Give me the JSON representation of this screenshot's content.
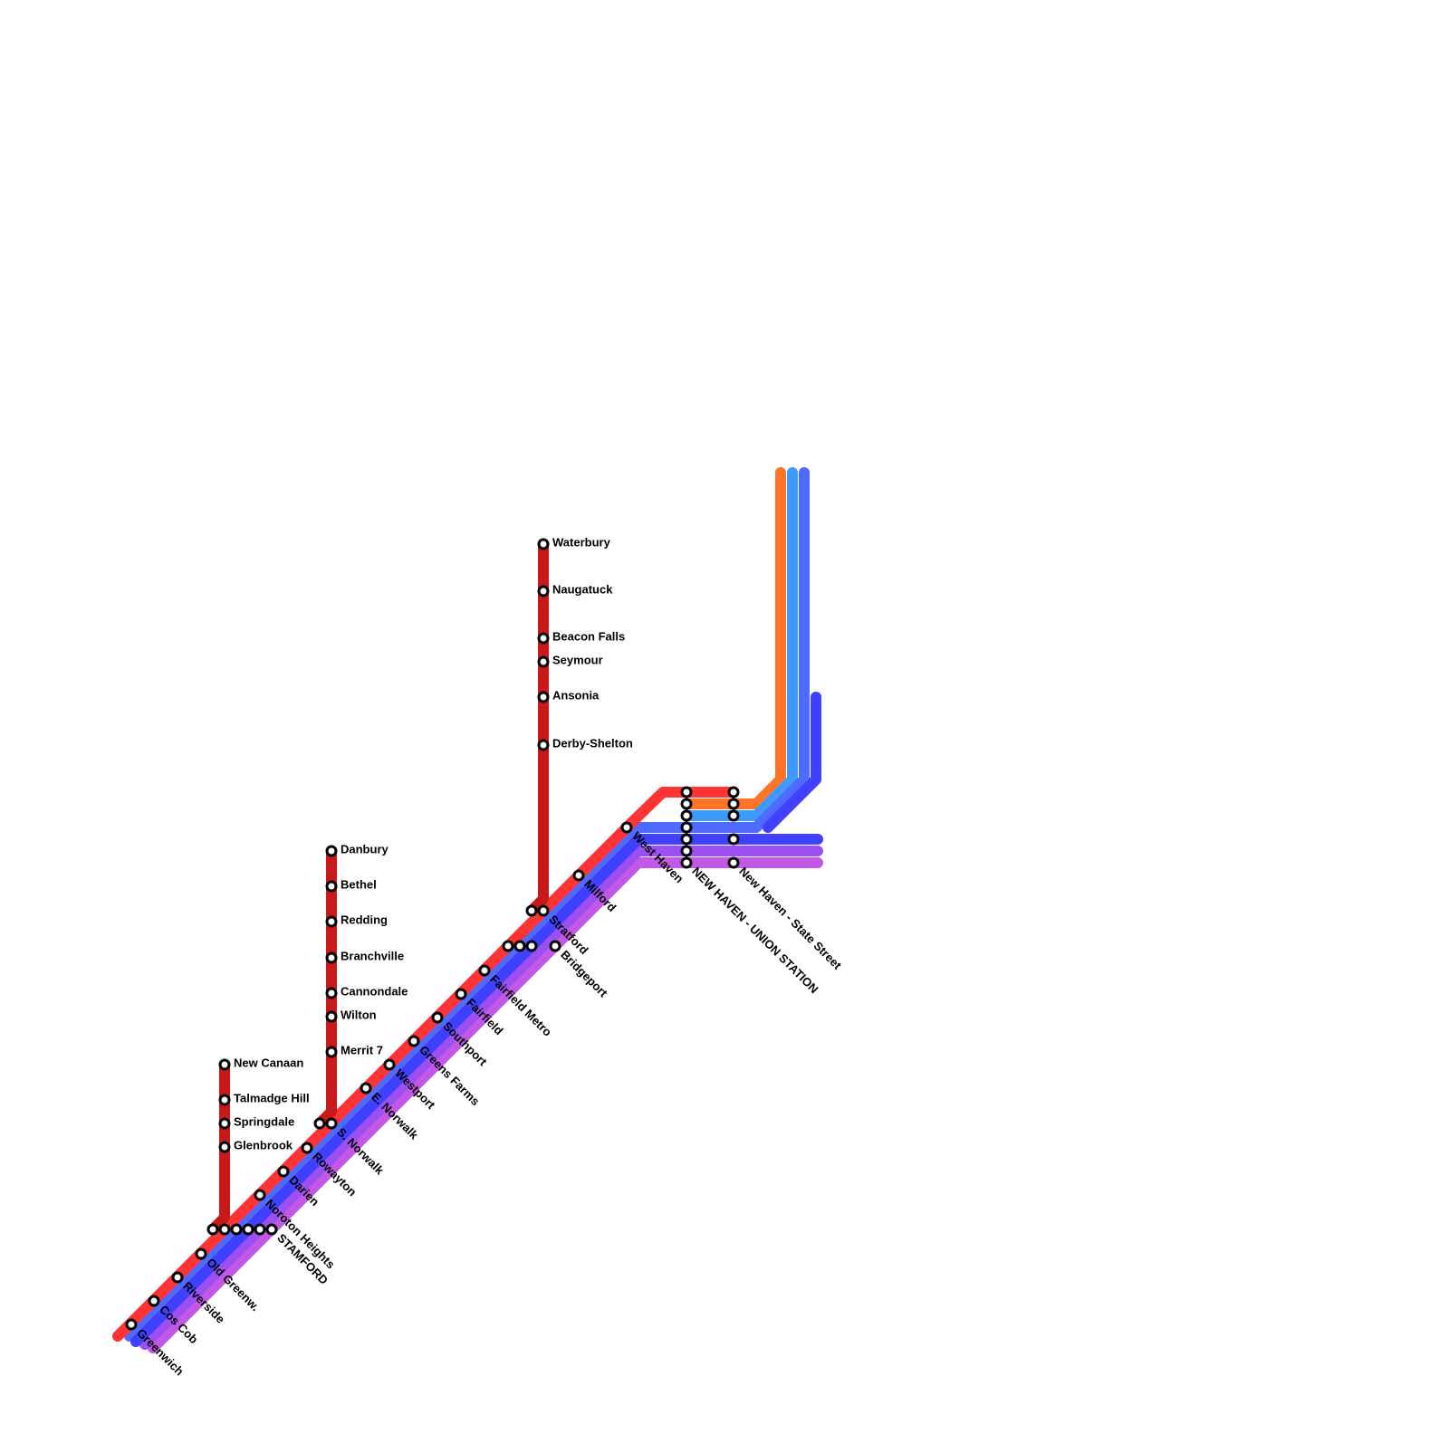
{
  "stations": [
    "Greenwich",
    "Cos Cob",
    "Riverside",
    "Old Greenw.",
    "STAMFORD",
    "Noroton Heights",
    "Darien",
    "Rowayton",
    "S. Norwalk",
    "E. Norwalk",
    "Westport",
    "Greens Farms",
    "Southport",
    "Fairfield",
    "Fairfield Metro",
    "Bridgeport",
    "Stratford",
    "Milford",
    "West Haven",
    "NEW HAVEN - UNION STATION",
    "New Haven - State Street",
    "New Canaan",
    "Talmadge Hill",
    "Springdale",
    "Glenbrook",
    "Danbury",
    "Bethel",
    "Redding",
    "Branchville",
    "Cannondale",
    "Wilton",
    "Merrit 7",
    "Waterbury",
    "Naugatuck",
    "Beacon Falls",
    "Seymour",
    "Ansonia",
    "Derby-Shelton"
  ]
}
